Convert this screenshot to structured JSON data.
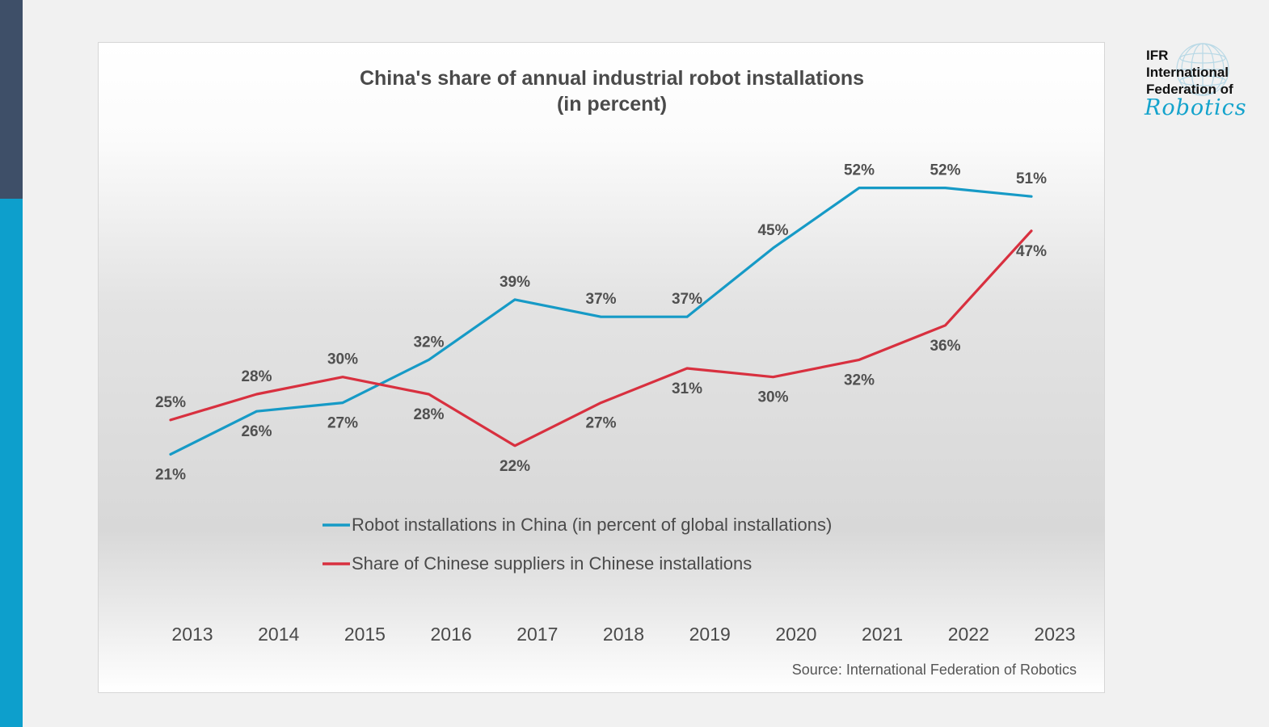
{
  "logo": {
    "line1": "IFR",
    "line2": "International",
    "line3": "Federation of",
    "script": "Robotics"
  },
  "chart_data": {
    "type": "line",
    "title_line1": "China's share of annual industrial robot installations",
    "title_line2": "(in percent)",
    "categories": [
      "2013",
      "2014",
      "2015",
      "2016",
      "2017",
      "2018",
      "2019",
      "2020",
      "2021",
      "2022",
      "2023"
    ],
    "series": [
      {
        "name": "Robot installations in China (in percent of global installations)",
        "color": "#169ac6",
        "values": [
          21,
          26,
          27,
          32,
          39,
          37,
          37,
          45,
          52,
          52,
          51
        ],
        "labels": [
          "21%",
          "26%",
          "27%",
          "32%",
          "39%",
          "37%",
          "37%",
          "45%",
          "52%",
          "52%",
          "51%"
        ]
      },
      {
        "name": "Share of Chinese suppliers in Chinese installations",
        "color": "#d8303f",
        "values": [
          25,
          28,
          30,
          28,
          22,
          27,
          31,
          30,
          32,
          36,
          47
        ],
        "labels": [
          "25%",
          "28%",
          "30%",
          "28%",
          "22%",
          "27%",
          "31%",
          "30%",
          "32%",
          "36%",
          "47%"
        ]
      }
    ],
    "source": "Source: International Federation of Robotics",
    "ylim": [
      15,
      55
    ],
    "grid": false,
    "legend_position": "bottom"
  }
}
